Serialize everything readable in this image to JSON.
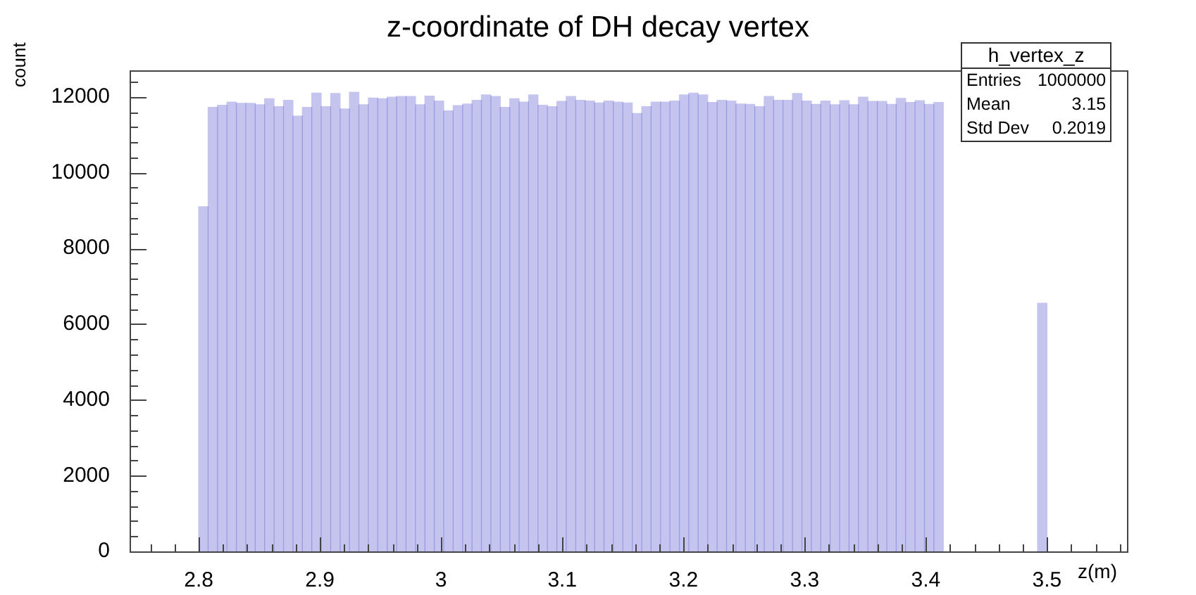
{
  "chart_data": {
    "type": "histogram",
    "title": "z-coordinate of DH decay vertex",
    "xlabel": "z(m)",
    "ylabel": "count",
    "bins": [
      2.8,
      2.8078,
      2.8156,
      2.8233,
      2.8311,
      2.8389,
      2.8467,
      2.8544,
      2.8622,
      2.87,
      2.8778,
      2.8856,
      2.8933,
      2.9011,
      2.9089,
      2.9167,
      2.9244,
      2.9322,
      2.94,
      2.9478,
      2.9556,
      2.9633,
      2.9711,
      2.9789,
      2.9867,
      2.9944,
      3.0022,
      3.01,
      3.0178,
      3.0256,
      3.0333,
      3.0411,
      3.0489,
      3.0567,
      3.0644,
      3.0722,
      3.08,
      3.0878,
      3.0956,
      3.1033,
      3.1111,
      3.1189,
      3.1267,
      3.1344,
      3.1422,
      3.15,
      3.1578,
      3.1656,
      3.1733,
      3.1811,
      3.1889,
      3.1967,
      3.2044,
      3.2122,
      3.22,
      3.2278,
      3.2356,
      3.2433,
      3.2511,
      3.2589,
      3.2667,
      3.2744,
      3.2822,
      3.29,
      3.2978,
      3.3056,
      3.3133,
      3.3211,
      3.3289,
      3.3367,
      3.3444,
      3.3522,
      3.36,
      3.3678,
      3.3756,
      3.3833,
      3.3911,
      3.3989,
      3.4067,
      3.4144,
      3.4222,
      3.43,
      3.4378,
      3.4456,
      3.4533,
      3.4611,
      3.4689,
      3.4767,
      3.4844,
      3.4922,
      3.5
    ],
    "values": [
      9100,
      11720,
      11780,
      11860,
      11830,
      11830,
      11790,
      11950,
      11740,
      11910,
      11490,
      11720,
      12100,
      11740,
      12090,
      11680,
      12120,
      11790,
      11970,
      11950,
      11990,
      12010,
      12010,
      11790,
      12020,
      11890,
      11630,
      11770,
      11810,
      11910,
      12050,
      12010,
      11720,
      11950,
      11860,
      12050,
      11780,
      11740,
      11880,
      12010,
      11910,
      11890,
      11840,
      11890,
      11860,
      11840,
      11560,
      11740,
      11860,
      11860,
      11890,
      12050,
      12100,
      12050,
      11850,
      11910,
      11890,
      11810,
      11800,
      11740,
      12010,
      11910,
      11910,
      12090,
      11890,
      11800,
      11890,
      11790,
      11900,
      11790,
      11990,
      11880,
      11880,
      11800,
      11960,
      11850,
      11900,
      11800,
      11850,
      null,
      null,
      null,
      null,
      null,
      null,
      null,
      null,
      null,
      null,
      6550
    ],
    "color": "#3c3cc8",
    "xlim": [
      2.743,
      3.566
    ],
    "xticks": [
      2.8,
      2.9,
      3,
      3.1,
      3.2,
      3.3,
      3.4,
      3.5
    ],
    "ylim": [
      0,
      12700
    ],
    "yticks": [
      0,
      2000,
      4000,
      6000,
      8000,
      10000,
      12000
    ],
    "annotations": [
      "h_vertex_z",
      "Entries",
      "1000000",
      "Mean",
      "3.15",
      "Std Dev",
      "0.2019"
    ]
  }
}
